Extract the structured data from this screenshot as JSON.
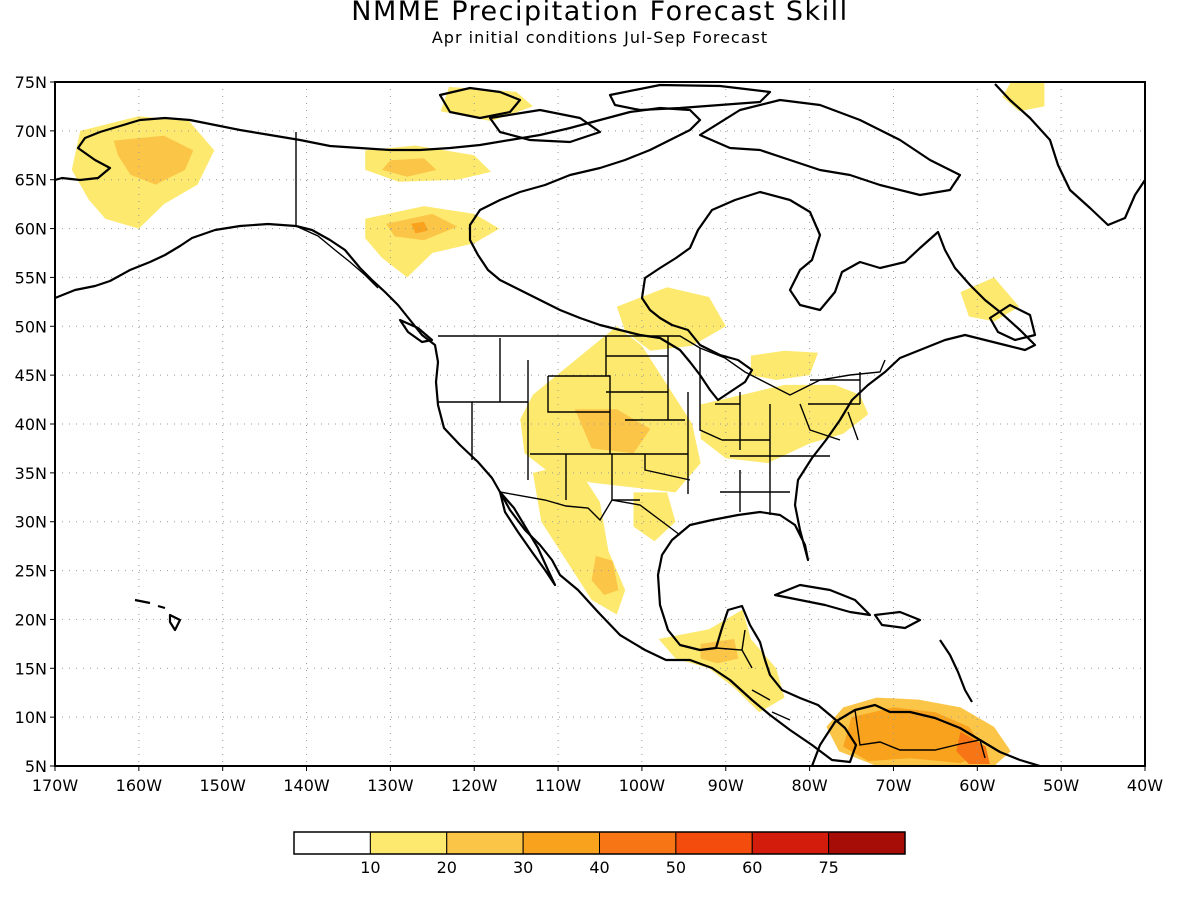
{
  "title": "NMME Precipitation Forecast Skill",
  "subtitle": "Apr initial conditions  Jul-Sep Forecast",
  "map": {
    "lon_range": [
      -170,
      -40
    ],
    "lat_range": [
      5,
      75
    ],
    "lon_ticks": [
      {
        "lon": -170,
        "label": "170W"
      },
      {
        "lon": -160,
        "label": "160W"
      },
      {
        "lon": -150,
        "label": "150W"
      },
      {
        "lon": -140,
        "label": "140W"
      },
      {
        "lon": -130,
        "label": "130W"
      },
      {
        "lon": -120,
        "label": "120W"
      },
      {
        "lon": -110,
        "label": "110W"
      },
      {
        "lon": -100,
        "label": "100W"
      },
      {
        "lon": -90,
        "label": "90W"
      },
      {
        "lon": -80,
        "label": "80W"
      },
      {
        "lon": -70,
        "label": "70W"
      },
      {
        "lon": -60,
        "label": "60W"
      },
      {
        "lon": -50,
        "label": "50W"
      },
      {
        "lon": -40,
        "label": "40W"
      }
    ],
    "lat_ticks": [
      {
        "lat": 75,
        "label": "75N"
      },
      {
        "lat": 70,
        "label": "70N"
      },
      {
        "lat": 65,
        "label": "65N"
      },
      {
        "lat": 60,
        "label": "60N"
      },
      {
        "lat": 55,
        "label": "55N"
      },
      {
        "lat": 50,
        "label": "50N"
      },
      {
        "lat": 45,
        "label": "45N"
      },
      {
        "lat": 40,
        "label": "40N"
      },
      {
        "lat": 35,
        "label": "35N"
      },
      {
        "lat": 30,
        "label": "30N"
      },
      {
        "lat": 25,
        "label": "25N"
      },
      {
        "lat": 20,
        "label": "20N"
      },
      {
        "lat": 15,
        "label": "15N"
      },
      {
        "lat": 10,
        "label": "10N"
      },
      {
        "lat": 5,
        "label": "5N"
      }
    ],
    "grid": true
  },
  "colorbar": {
    "colors": [
      "#ffffff",
      "#fde96e",
      "#fbc548",
      "#f9a21e",
      "#f77514",
      "#f34c0c",
      "#d41c0c",
      "#a50d06"
    ],
    "labels": [
      "10",
      "20",
      "30",
      "40",
      "50",
      "60",
      "75"
    ]
  },
  "skill_regions": [
    {
      "name": "alaska-west",
      "level": 1,
      "lonlat": [
        [
          -167,
          70
        ],
        [
          -160,
          71.5
        ],
        [
          -154,
          71
        ],
        [
          -151,
          68
        ],
        [
          -153,
          64.5
        ],
        [
          -157,
          62.5
        ],
        [
          -160,
          60
        ],
        [
          -164,
          61
        ],
        [
          -166,
          63
        ],
        [
          -168,
          66
        ]
      ]
    },
    {
      "name": "alaska-core",
      "level": 2,
      "lonlat": [
        [
          -163,
          69
        ],
        [
          -157,
          69.5
        ],
        [
          -153.5,
          68
        ],
        [
          -154.5,
          66
        ],
        [
          -158,
          64.5
        ],
        [
          -161,
          65.5
        ],
        [
          -162.5,
          67.5
        ]
      ]
    },
    {
      "name": "yukon-north",
      "level": 1,
      "lonlat": [
        [
          -133,
          68
        ],
        [
          -127,
          68.5
        ],
        [
          -120,
          67.5
        ],
        [
          -118,
          65.8
        ],
        [
          -122,
          65
        ],
        [
          -129,
          64.8
        ],
        [
          -133,
          66
        ]
      ]
    },
    {
      "name": "yukon-north-core",
      "level": 2,
      "lonlat": [
        [
          -130,
          67
        ],
        [
          -126,
          67.2
        ],
        [
          -124.5,
          66
        ],
        [
          -128,
          65.3
        ],
        [
          -131,
          66
        ]
      ]
    },
    {
      "name": "bc-north",
      "level": 1,
      "lonlat": [
        [
          -133,
          61
        ],
        [
          -126,
          62.3
        ],
        [
          -120,
          61.5
        ],
        [
          -117,
          60
        ],
        [
          -120,
          58.5
        ],
        [
          -125,
          57.5
        ],
        [
          -128,
          55
        ],
        [
          -131,
          57
        ],
        [
          -133,
          59
        ]
      ]
    },
    {
      "name": "bc-north-core",
      "level": 2,
      "lonlat": [
        [
          -130.5,
          60.5
        ],
        [
          -125,
          61.5
        ],
        [
          -122,
          60.2
        ],
        [
          -126,
          58.8
        ],
        [
          -129.5,
          59.2
        ]
      ]
    },
    {
      "name": "bc-north-peak",
      "level": 3,
      "lonlat": [
        [
          -127.5,
          60.5
        ],
        [
          -126,
          60.7
        ],
        [
          -125.5,
          59.8
        ],
        [
          -127,
          59.5
        ]
      ]
    },
    {
      "name": "great-plains",
      "level": 1,
      "lonlat": [
        [
          -113,
          43
        ],
        [
          -108,
          46.5
        ],
        [
          -103,
          50
        ],
        [
          -100,
          48
        ],
        [
          -97,
          44
        ],
        [
          -94,
          40
        ],
        [
          -93,
          36
        ],
        [
          -96,
          33
        ],
        [
          -101,
          33.5
        ],
        [
          -106,
          34
        ],
        [
          -111,
          35
        ],
        [
          -114,
          37
        ],
        [
          -114.5,
          40.5
        ]
      ]
    },
    {
      "name": "great-plains-core",
      "level": 2,
      "lonlat": [
        [
          -108,
          41.5
        ],
        [
          -103,
          41.5
        ],
        [
          -99,
          39.5
        ],
        [
          -101,
          37
        ],
        [
          -106,
          37.5
        ]
      ]
    },
    {
      "name": "southwest-mexico",
      "level": 1,
      "lonlat": [
        [
          -113,
          35
        ],
        [
          -108,
          36
        ],
        [
          -105,
          32
        ],
        [
          -104,
          27
        ],
        [
          -102,
          23
        ],
        [
          -103,
          20.5
        ],
        [
          -106,
          22
        ],
        [
          -109,
          26
        ],
        [
          -112,
          30
        ]
      ]
    },
    {
      "name": "mexico-core",
      "level": 2,
      "lonlat": [
        [
          -105.5,
          26.5
        ],
        [
          -103.5,
          26
        ],
        [
          -102.8,
          23
        ],
        [
          -104.5,
          22.5
        ],
        [
          -106,
          24
        ]
      ]
    },
    {
      "name": "texas-blob",
      "level": 1,
      "lonlat": [
        [
          -101,
          33
        ],
        [
          -97,
          33
        ],
        [
          -96,
          30
        ],
        [
          -98.5,
          28
        ],
        [
          -101,
          29.5
        ]
      ]
    },
    {
      "name": "ohio-valley",
      "level": 1,
      "lonlat": [
        [
          -93,
          42
        ],
        [
          -88,
          43
        ],
        [
          -83,
          44
        ],
        [
          -77,
          44
        ],
        [
          -74,
          43
        ],
        [
          -73,
          41
        ],
        [
          -76,
          39
        ],
        [
          -80,
          38
        ],
        [
          -85,
          36
        ],
        [
          -90,
          36.5
        ],
        [
          -93,
          38.5
        ]
      ]
    },
    {
      "name": "great-lakes",
      "level": 1,
      "lonlat": [
        [
          -87,
          47
        ],
        [
          -83,
          47.5
        ],
        [
          -79,
          47.3
        ],
        [
          -80,
          45
        ],
        [
          -84,
          44.5
        ],
        [
          -87,
          45
        ]
      ]
    },
    {
      "name": "hudson-west",
      "level": 1,
      "lonlat": [
        [
          -103,
          52
        ],
        [
          -97,
          54
        ],
        [
          -92,
          53
        ],
        [
          -90,
          50
        ],
        [
          -94,
          48
        ],
        [
          -99,
          47.5
        ],
        [
          -102,
          49.5
        ]
      ]
    },
    {
      "name": "arctic-islands",
      "level": 1,
      "lonlat": [
        [
          -123,
          74.5
        ],
        [
          -115,
          74
        ],
        [
          -113,
          72.5
        ],
        [
          -118,
          71
        ],
        [
          -124,
          72
        ]
      ]
    },
    {
      "name": "labrador",
      "level": 1,
      "lonlat": [
        [
          -62,
          53.5
        ],
        [
          -58,
          55
        ],
        [
          -55,
          52
        ],
        [
          -58,
          50.5
        ],
        [
          -61,
          51
        ]
      ]
    },
    {
      "name": "greenland-east",
      "level": 1,
      "lonlat": [
        [
          -56,
          75
        ],
        [
          -52,
          75
        ],
        [
          -52,
          72.5
        ],
        [
          -55,
          72
        ],
        [
          -57,
          73.5
        ]
      ]
    },
    {
      "name": "central-america",
      "level": 1,
      "lonlat": [
        [
          -98,
          18
        ],
        [
          -92,
          19
        ],
        [
          -88,
          21
        ],
        [
          -87,
          18
        ],
        [
          -84,
          15
        ],
        [
          -83,
          12
        ],
        [
          -86,
          10.5
        ],
        [
          -89,
          13
        ],
        [
          -92,
          15
        ],
        [
          -96,
          16
        ]
      ]
    },
    {
      "name": "central-america-core",
      "level": 2,
      "lonlat": [
        [
          -93,
          17.5
        ],
        [
          -89,
          18
        ],
        [
          -88.5,
          16
        ],
        [
          -91,
          15.5
        ],
        [
          -93,
          16
        ]
      ]
    },
    {
      "name": "venezuela",
      "level": 2,
      "lonlat": [
        [
          -76,
          11
        ],
        [
          -72,
          12
        ],
        [
          -67,
          11.8
        ],
        [
          -62,
          11
        ],
        [
          -58,
          9
        ],
        [
          -56,
          6.5
        ],
        [
          -58,
          5
        ],
        [
          -65,
          5
        ],
        [
          -72,
          5
        ],
        [
          -76.5,
          6.5
        ],
        [
          -78,
          9
        ]
      ]
    },
    {
      "name": "venezuela-core",
      "level": 3,
      "lonlat": [
        [
          -75,
          10
        ],
        [
          -70,
          11
        ],
        [
          -65,
          10.5
        ],
        [
          -61,
          9
        ],
        [
          -59,
          6.5
        ],
        [
          -62,
          5.3
        ],
        [
          -68,
          5.8
        ],
        [
          -73,
          5.5
        ],
        [
          -76,
          7
        ]
      ]
    },
    {
      "name": "venezuela-peak",
      "level": 4,
      "lonlat": [
        [
          -62,
          8.5
        ],
        [
          -59,
          7
        ],
        [
          -58.5,
          5.2
        ],
        [
          -61,
          5.2
        ],
        [
          -62.5,
          6.5
        ]
      ]
    }
  ]
}
